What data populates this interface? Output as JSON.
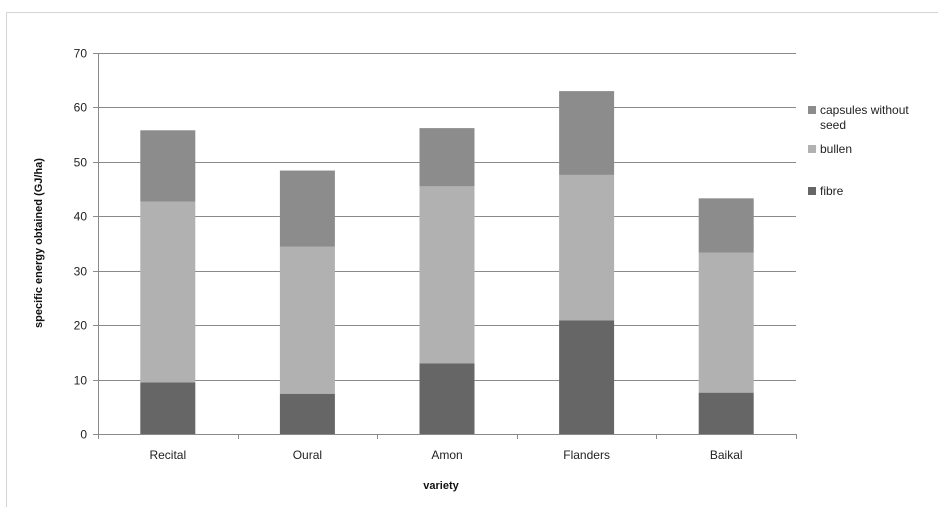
{
  "chart_data": {
    "type": "bar",
    "stacked": true,
    "categories": [
      "Recital",
      "Oural",
      "Amon",
      "Flanders",
      "Baikal"
    ],
    "series": [
      {
        "name": "fibre",
        "color": "#666666",
        "values": [
          9.5,
          7.4,
          13.0,
          20.9,
          7.6
        ]
      },
      {
        "name": "bullen",
        "color": "#b1b1b1",
        "values": [
          33.2,
          27.0,
          32.5,
          26.7,
          25.7
        ]
      },
      {
        "name": "capsules without seed",
        "color": "#8c8c8c",
        "values": [
          13.1,
          14.0,
          10.7,
          15.4,
          10.0
        ]
      }
    ],
    "title": "",
    "xlabel": "variety",
    "ylabel": "specific energy obtained (GJ/ha)",
    "ylim": [
      0,
      70
    ],
    "yticks": [
      0,
      10,
      20,
      30,
      40,
      50,
      60,
      70
    ],
    "grid": true,
    "legend_position": "right",
    "legend_entries": [
      {
        "lines": [
          "capsules without",
          "seed"
        ],
        "color": "#8c8c8c"
      },
      {
        "lines": [
          "bullen"
        ],
        "color": "#b1b1b1"
      },
      {
        "lines": [
          "fibre"
        ],
        "color": "#666666"
      }
    ]
  }
}
